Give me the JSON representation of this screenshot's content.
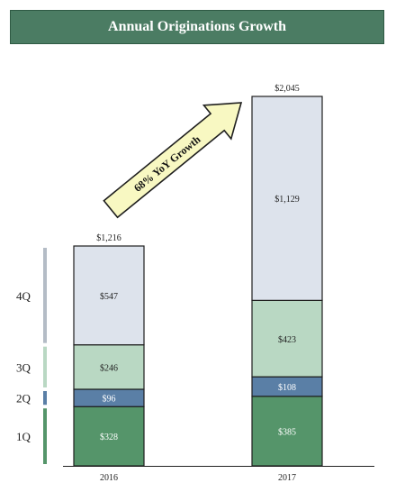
{
  "chart_data": {
    "type": "bar",
    "stacked": true,
    "title": "Annual Originations Growth",
    "categories": [
      "2016",
      "2017"
    ],
    "series": [
      {
        "name": "1Q",
        "values": [
          328,
          385
        ],
        "labels": [
          "$328",
          "$385"
        ],
        "color": "#55956a",
        "label_color": "#ffffff"
      },
      {
        "name": "2Q",
        "values": [
          96,
          108
        ],
        "labels": [
          "$96",
          "$108"
        ],
        "color": "#5a7fa6",
        "label_color": "#ffffff"
      },
      {
        "name": "3Q",
        "values": [
          246,
          423
        ],
        "labels": [
          "$246",
          "$423"
        ],
        "color": "#b9d8c3",
        "label_color": "#222222"
      },
      {
        "name": "4Q",
        "values": [
          547,
          1129
        ],
        "labels": [
          "$547",
          "$1,129"
        ],
        "color": "#dde3ec",
        "label_color": "#222222"
      }
    ],
    "totals": [
      1216,
      2045
    ],
    "total_labels": [
      "$1,216",
      "$2,045"
    ],
    "annotation": "68% YoY Growth",
    "annotation_color": "#f8f8c2",
    "legend_placement": "left",
    "legend_bar_colors": [
      "#55956a",
      "#5a7fa6",
      "#b9d8c3",
      "#b4bcc6"
    ],
    "grid": false,
    "ylim": [
      0,
      2045
    ]
  }
}
